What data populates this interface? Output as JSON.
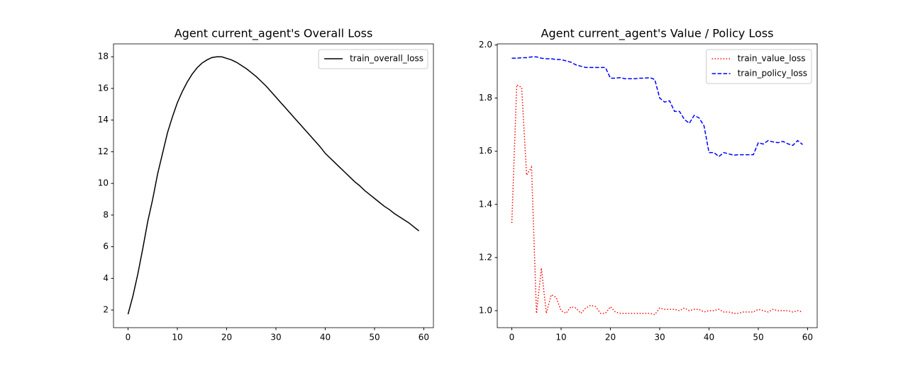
{
  "chart_data": [
    {
      "type": "line",
      "title": "Agent current_agent's Overall Loss",
      "x": [
        0,
        1,
        2,
        3,
        4,
        5,
        6,
        7,
        8,
        9,
        10,
        11,
        12,
        13,
        14,
        15,
        16,
        17,
        18,
        19,
        20,
        21,
        22,
        23,
        24,
        25,
        26,
        27,
        28,
        29,
        30,
        31,
        32,
        33,
        34,
        35,
        36,
        37,
        38,
        39,
        40,
        41,
        42,
        43,
        44,
        45,
        46,
        47,
        48,
        49,
        50,
        51,
        52,
        53,
        54,
        55,
        56,
        57,
        58,
        59
      ],
      "series": [
        {
          "name": "train_overall_loss",
          "color": "#000000",
          "linestyle": "solid",
          "values": [
            1.73,
            2.9,
            4.3,
            5.9,
            7.6,
            9.0,
            10.6,
            11.9,
            13.2,
            14.2,
            15.1,
            15.8,
            16.4,
            16.9,
            17.3,
            17.6,
            17.8,
            17.95,
            18.0,
            18.0,
            17.9,
            17.8,
            17.65,
            17.45,
            17.25,
            17.0,
            16.75,
            16.45,
            16.15,
            15.8,
            15.45,
            15.1,
            14.75,
            14.4,
            14.05,
            13.7,
            13.35,
            13.0,
            12.65,
            12.3,
            11.9,
            11.6,
            11.3,
            11.0,
            10.7,
            10.4,
            10.1,
            9.85,
            9.55,
            9.3,
            9.05,
            8.8,
            8.55,
            8.35,
            8.1,
            7.9,
            7.7,
            7.5,
            7.25,
            7.0
          ]
        }
      ],
      "xlim": [
        -2.95,
        61.95
      ],
      "xticks": [
        0,
        10,
        20,
        30,
        40,
        50,
        60
      ],
      "ylim": [
        0.885,
        18.815
      ],
      "yticks": [
        2,
        4,
        6,
        8,
        10,
        12,
        14,
        16,
        18
      ],
      "legend": "upper right"
    },
    {
      "type": "line",
      "title": "Agent current_agent's Value / Policy Loss",
      "x": [
        0,
        1,
        2,
        3,
        4,
        5,
        6,
        7,
        8,
        9,
        10,
        11,
        12,
        13,
        14,
        15,
        16,
        17,
        18,
        19,
        20,
        21,
        22,
        23,
        24,
        25,
        26,
        27,
        28,
        29,
        30,
        31,
        32,
        33,
        34,
        35,
        36,
        37,
        38,
        39,
        40,
        41,
        42,
        43,
        44,
        45,
        46,
        47,
        48,
        49,
        50,
        51,
        52,
        53,
        54,
        55,
        56,
        57,
        58,
        59
      ],
      "series": [
        {
          "name": "train_value_loss",
          "color": "#ff0000",
          "linestyle": "dotted",
          "values": [
            1.33,
            1.85,
            1.84,
            1.51,
            1.54,
            0.99,
            1.16,
            0.99,
            1.06,
            1.05,
            1.0,
            0.99,
            1.015,
            1.01,
            0.99,
            1.01,
            1.02,
            1.015,
            0.99,
            0.99,
            1.015,
            0.995,
            0.99,
            0.99,
            0.99,
            0.99,
            0.99,
            0.99,
            0.99,
            0.985,
            1.01,
            1.005,
            1.005,
            1.005,
            1.0,
            1.01,
            1.0,
            1.005,
            1.005,
            0.995,
            1.0,
            1.0,
            1.005,
            0.995,
            0.995,
            0.99,
            0.99,
            0.995,
            0.995,
            0.995,
            1.005,
            1.0,
            0.995,
            1.005,
            1.0,
            1.0,
            1.0,
            0.995,
            1.0,
            0.995
          ]
        },
        {
          "name": "train_policy_loss",
          "color": "#0000ff",
          "linestyle": "dashed",
          "values": [
            1.95,
            1.95,
            1.952,
            1.952,
            1.955,
            1.955,
            1.95,
            1.948,
            1.948,
            1.945,
            1.945,
            1.94,
            1.935,
            1.925,
            1.92,
            1.915,
            1.915,
            1.915,
            1.915,
            1.915,
            1.875,
            1.875,
            1.877,
            1.873,
            1.873,
            1.873,
            1.875,
            1.875,
            1.877,
            1.87,
            1.8,
            1.785,
            1.79,
            1.75,
            1.75,
            1.72,
            1.705,
            1.735,
            1.725,
            1.695,
            1.595,
            1.595,
            1.58,
            1.595,
            1.59,
            1.585,
            1.587,
            1.587,
            1.587,
            1.587,
            1.632,
            1.627,
            1.64,
            1.635,
            1.632,
            1.637,
            1.628,
            1.622,
            1.64,
            1.625
          ]
        }
      ],
      "xlim": [
        -2.95,
        61.95
      ],
      "xticks": [
        0,
        10,
        20,
        30,
        40,
        50,
        60
      ],
      "ylim": [
        0.936,
        2.004
      ],
      "yticks": [
        {
          "value": 1.0,
          "label": "1.0"
        },
        {
          "value": 1.2,
          "label": "1.2"
        },
        {
          "value": 1.4,
          "label": "1.4"
        },
        {
          "value": 1.6,
          "label": "1.6"
        },
        {
          "value": 1.8,
          "label": "1.8"
        },
        {
          "value": 2.0,
          "label": "2.0"
        }
      ],
      "legend": "upper right"
    }
  ]
}
